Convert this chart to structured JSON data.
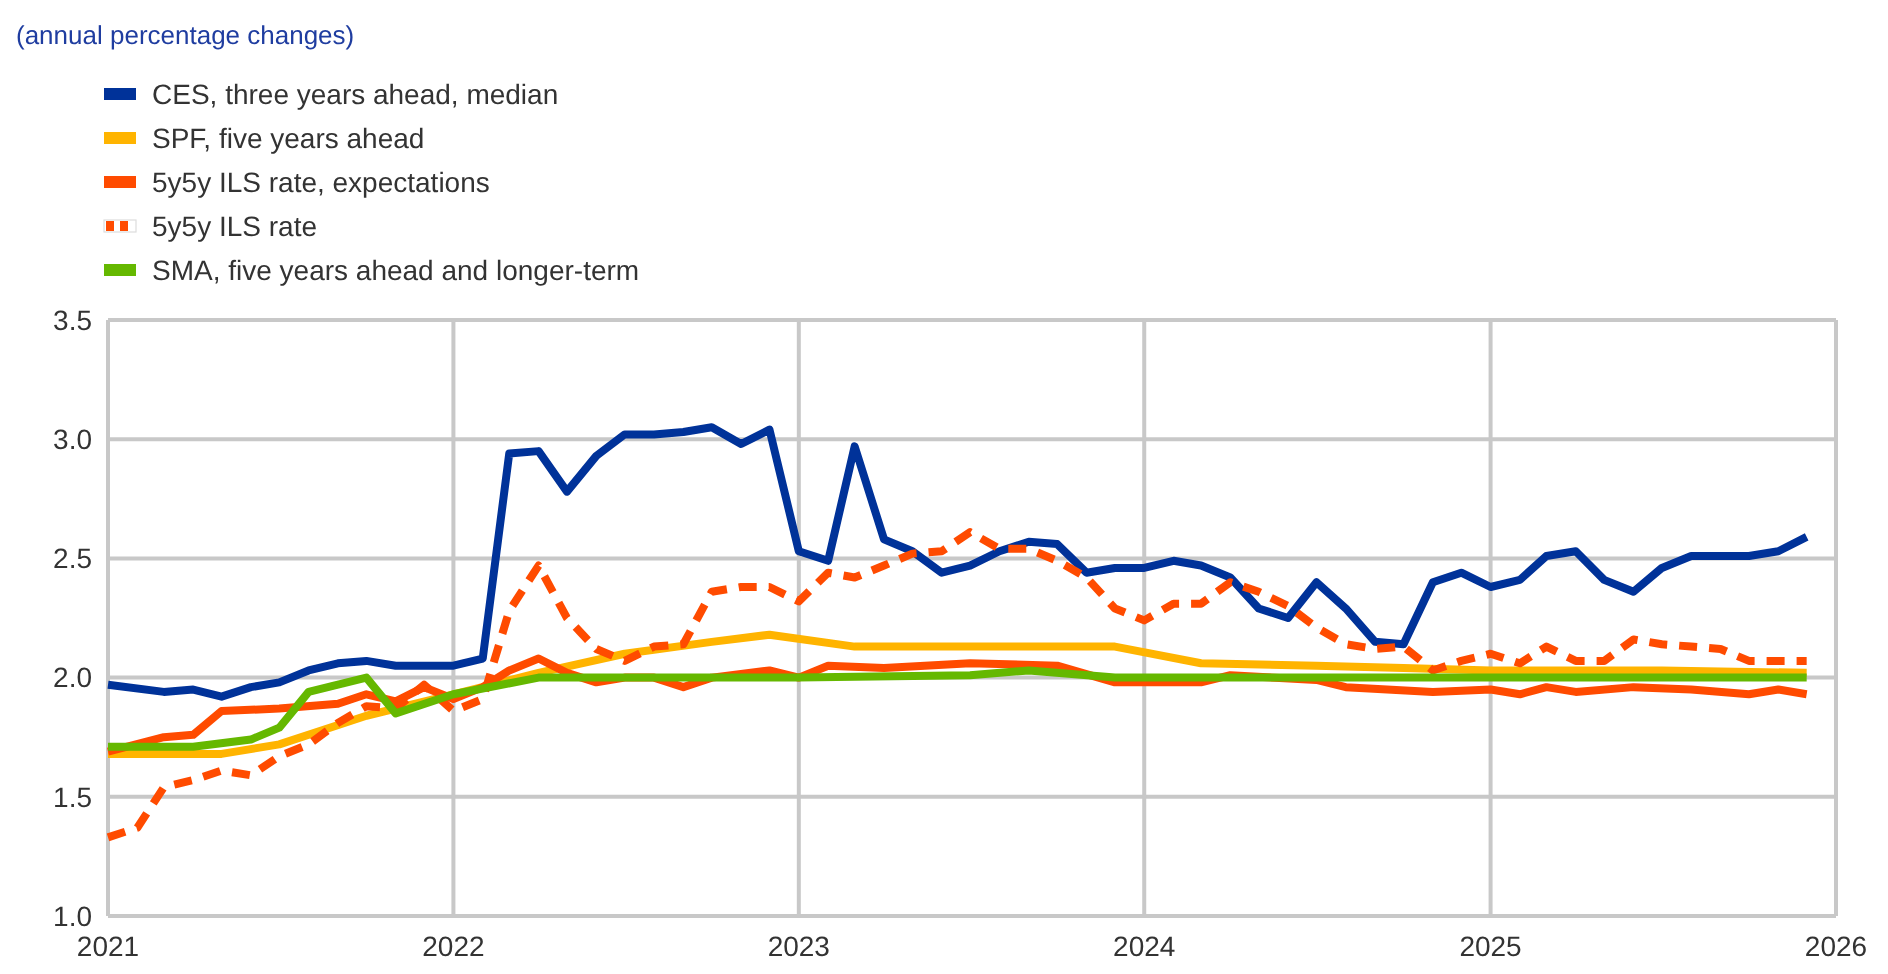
{
  "chart_data": {
    "type": "line",
    "subtitle": "(annual percentage changes)",
    "xlim": [
      "2021",
      "2026"
    ],
    "xticks": [
      "2021",
      "2022",
      "2023",
      "2024",
      "2025",
      "2026"
    ],
    "ylim": [
      1.0,
      3.5
    ],
    "yticks": [
      {
        "value": 1.0,
        "label": "1.0"
      },
      {
        "value": 1.5,
        "label": "1.5"
      },
      {
        "value": 2.0,
        "label": "2.0"
      },
      {
        "value": 2.5,
        "label": "2.5"
      },
      {
        "value": 3.0,
        "label": "3.0"
      },
      {
        "value": 3.5,
        "label": "3.5"
      }
    ],
    "grid": true,
    "legend": "top left",
    "marker": "none",
    "series": [
      {
        "name": "CES, three years ahead, median",
        "color": "#003299",
        "x": [
          "2021-01",
          "2021-03",
          "2021-04",
          "2021-05",
          "2021-06",
          "2021-07",
          "2021-08",
          "2021-09",
          "2021-10",
          "2021-11",
          "2022-01",
          "2022-02",
          "2022-03",
          "2022-04",
          "2022-05",
          "2022-06",
          "2022-07",
          "2022-08",
          "2022-09",
          "2022-10",
          "2022-11",
          "2022-12",
          "2023-01",
          "2023-02",
          "2023-03",
          "2023-04",
          "2023-05",
          "2023-06",
          "2023-07",
          "2023-08",
          "2023-09",
          "2023-10",
          "2023-11",
          "2023-12",
          "2024-01",
          "2024-02",
          "2024-03",
          "2024-04",
          "2024-05",
          "2024-06",
          "2024-07",
          "2024-08",
          "2024-09",
          "2024-10",
          "2024-11",
          "2024-12",
          "2025-01",
          "2025-02",
          "2025-03",
          "2025-04",
          "2025-05",
          "2025-06",
          "2025-07",
          "2025-08",
          "2025-09",
          "2025-10",
          "2025-11",
          "2025-12"
        ],
        "values": [
          1.97,
          1.94,
          1.95,
          1.92,
          1.96,
          1.98,
          2.03,
          2.06,
          2.07,
          2.05,
          2.05,
          2.08,
          2.94,
          2.95,
          2.78,
          2.93,
          3.02,
          3.02,
          3.03,
          3.05,
          2.98,
          3.04,
          2.53,
          2.49,
          2.97,
          2.58,
          2.53,
          2.44,
          2.47,
          2.53,
          2.57,
          2.56,
          2.44,
          2.46,
          2.46,
          2.49,
          2.47,
          2.42,
          2.29,
          2.25,
          2.4,
          2.29,
          2.15,
          2.14,
          2.4,
          2.44,
          2.38,
          2.41,
          2.51,
          2.53,
          2.41,
          2.36,
          2.46,
          2.51,
          2.51,
          2.51,
          2.53,
          2.59
        ]
      },
      {
        "name": "SPF, five years ahead",
        "color": "#ffb400",
        "x": [
          "2021-01",
          "2021-05",
          "2021-07",
          "2021-10",
          "2022-01",
          "2022-04",
          "2022-07",
          "2022-10",
          "2022-12",
          "2023-03",
          "2023-07",
          "2023-10",
          "2023-12",
          "2024-03",
          "2024-07",
          "2024-10",
          "2025-01",
          "2025-04",
          "2025-07",
          "2025-12"
        ],
        "values": [
          1.68,
          1.68,
          1.72,
          1.84,
          1.93,
          2.02,
          2.1,
          2.15,
          2.18,
          2.13,
          2.13,
          2.13,
          2.13,
          2.06,
          2.05,
          2.04,
          2.03,
          2.03,
          2.03,
          2.02
        ]
      },
      {
        "name": "5y5y ILS rate, expectations",
        "color": "#ff4b00",
        "x": [
          "2021-01",
          "2021-03",
          "2021-04",
          "2021-05",
          "2021-07",
          "2021-09",
          "2021-10",
          "2021-11",
          "2021-12",
          "2022-01",
          "2022-02",
          "2022-03",
          "2022-04",
          "2022-05",
          "2022-06",
          "2022-07",
          "2022-08",
          "2022-09",
          "2022-10",
          "2022-12",
          "2023-01",
          "2023-02",
          "2023-04",
          "2023-07",
          "2023-10",
          "2023-12",
          "2024-03",
          "2024-04",
          "2024-07",
          "2024-08",
          "2024-11",
          "2025-01",
          "2025-02",
          "2025-03",
          "2025-04",
          "2025-06",
          "2025-08",
          "2025-10",
          "2025-11",
          "2025-12"
        ],
        "values": [
          1.69,
          1.75,
          1.76,
          1.86,
          1.87,
          1.89,
          1.93,
          1.9,
          1.96,
          1.91,
          1.96,
          2.03,
          2.08,
          2.02,
          1.98,
          2.0,
          2.0,
          1.96,
          2.0,
          2.03,
          2.0,
          2.05,
          2.04,
          2.06,
          2.05,
          1.98,
          1.98,
          2.01,
          1.99,
          1.96,
          1.94,
          1.95,
          1.93,
          1.96,
          1.94,
          1.96,
          1.95,
          1.93,
          1.95,
          1.93
        ]
      },
      {
        "name": "5y5y ILS rate",
        "color": "#ff4b00",
        "line_style": "dashed",
        "x": [
          "2021-01",
          "2021-02",
          "2021-03",
          "2021-04",
          "2021-05",
          "2021-06",
          "2021-07",
          "2021-08",
          "2021-09",
          "2021-10",
          "2021-11",
          "2021-12",
          "2022-01",
          "2022-02",
          "2022-03",
          "2022-04",
          "2022-05",
          "2022-06",
          "2022-07",
          "2022-08",
          "2022-09",
          "2022-10",
          "2022-11",
          "2022-12",
          "2023-01",
          "2023-02",
          "2023-03",
          "2023-04",
          "2023-05",
          "2023-06",
          "2023-07",
          "2023-08",
          "2023-09",
          "2023-10",
          "2023-11",
          "2023-12",
          "2024-01",
          "2024-02",
          "2024-03",
          "2024-04",
          "2024-05",
          "2024-06",
          "2024-07",
          "2024-08",
          "2024-09",
          "2024-10",
          "2024-11",
          "2024-12",
          "2025-01",
          "2025-02",
          "2025-03",
          "2025-04",
          "2025-05",
          "2025-06",
          "2025-07",
          "2025-08",
          "2025-09",
          "2025-10",
          "2025-11",
          "2025-12"
        ],
        "values": [
          1.33,
          1.37,
          1.54,
          1.57,
          1.61,
          1.59,
          1.67,
          1.72,
          1.81,
          1.88,
          1.87,
          1.97,
          1.86,
          1.91,
          2.28,
          2.47,
          2.25,
          2.12,
          2.07,
          2.13,
          2.14,
          2.36,
          2.38,
          2.38,
          2.32,
          2.44,
          2.42,
          2.47,
          2.52,
          2.53,
          2.61,
          2.54,
          2.54,
          2.49,
          2.42,
          2.29,
          2.24,
          2.31,
          2.31,
          2.4,
          2.36,
          2.3,
          2.21,
          2.14,
          2.12,
          2.13,
          2.03,
          2.07,
          2.1,
          2.06,
          2.13,
          2.07,
          2.07,
          2.16,
          2.14,
          2.13,
          2.12,
          2.07,
          2.07,
          2.07
        ]
      },
      {
        "name": "SMA, five years ahead and longer-term",
        "color": "#65b800",
        "x": [
          "2021-01",
          "2021-04",
          "2021-06",
          "2021-07",
          "2021-08",
          "2021-10",
          "2021-11",
          "2022-01",
          "2022-04",
          "2022-07",
          "2023-01",
          "2023-07",
          "2023-09",
          "2023-12",
          "2024-06",
          "2025-01",
          "2025-06",
          "2025-12"
        ],
        "values": [
          1.71,
          1.71,
          1.74,
          1.79,
          1.94,
          2.0,
          1.85,
          1.93,
          2.0,
          2.0,
          2.0,
          2.01,
          2.03,
          2.0,
          2.0,
          2.0,
          2.0,
          2.0
        ]
      }
    ]
  }
}
